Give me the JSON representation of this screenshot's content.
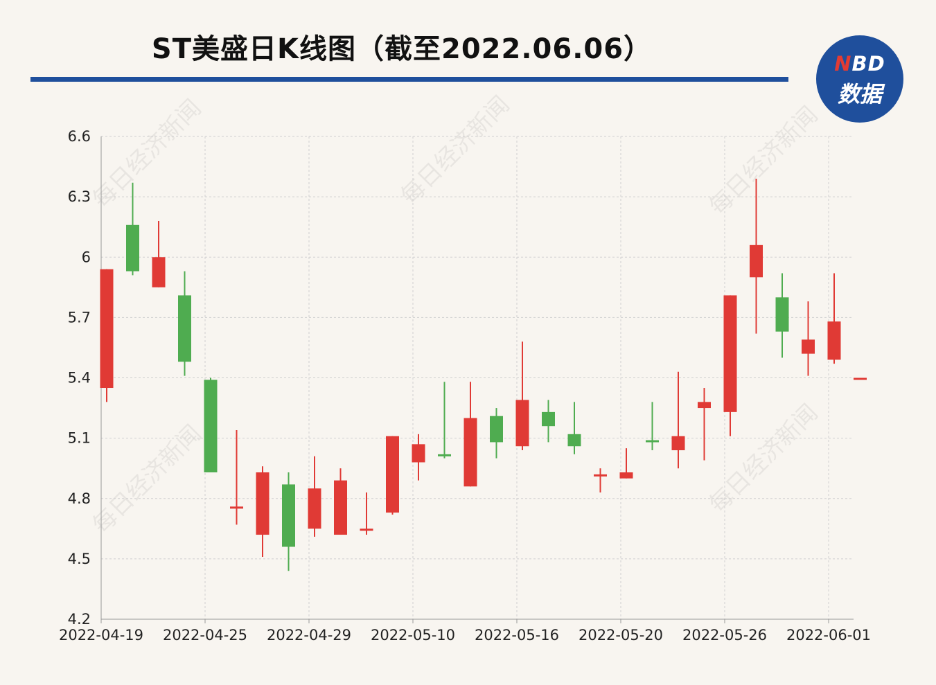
{
  "title": "ST美盛日K线图（截至2022.06.06）",
  "logo": {
    "line1_n": "N",
    "line1_rest": "BD",
    "line2": "数据"
  },
  "watermark": "每日经济新闻",
  "colors": {
    "up": "#e03a35",
    "down": "#4fac50",
    "title_rule": "#1f4f9c",
    "grid": "#cfcfcf",
    "axis": "#999999"
  },
  "chart_data": {
    "type": "candlestick",
    "title": "ST美盛日K线图（截至2022.06.06）",
    "xlabel": "",
    "ylabel": "",
    "ylim": [
      4.2,
      6.6
    ],
    "y_ticks": [
      "4.2",
      "4.5",
      "4.8",
      "5.1",
      "5.4",
      "5.7",
      "6",
      "6.3",
      "6.6"
    ],
    "x_ticks": [
      {
        "label": "2022-04-19",
        "index": 0
      },
      {
        "label": "2022-04-25",
        "index": 4
      },
      {
        "label": "2022-04-29",
        "index": 8
      },
      {
        "label": "2022-05-10",
        "index": 12
      },
      {
        "label": "2022-05-16",
        "index": 16
      },
      {
        "label": "2022-05-20",
        "index": 20
      },
      {
        "label": "2022-05-26",
        "index": 24
      },
      {
        "label": "2022-06-01",
        "index": 28
      }
    ],
    "grid": true,
    "candles": [
      {
        "open": 5.35,
        "close": 5.94,
        "high": 5.94,
        "low": 5.28
      },
      {
        "open": 6.16,
        "close": 5.93,
        "high": 6.37,
        "low": 5.91
      },
      {
        "open": 5.85,
        "close": 6.0,
        "high": 6.18,
        "low": 5.85
      },
      {
        "open": 5.81,
        "close": 5.48,
        "high": 5.93,
        "low": 5.41
      },
      {
        "open": 5.39,
        "close": 4.93,
        "high": 5.4,
        "low": 4.93
      },
      {
        "open": 4.75,
        "close": 4.76,
        "high": 5.14,
        "low": 4.67
      },
      {
        "open": 4.62,
        "close": 4.93,
        "high": 4.96,
        "low": 4.51
      },
      {
        "open": 4.87,
        "close": 4.56,
        "high": 4.93,
        "low": 4.44
      },
      {
        "open": 4.65,
        "close": 4.85,
        "high": 5.01,
        "low": 4.61
      },
      {
        "open": 4.62,
        "close": 4.89,
        "high": 4.95,
        "low": 4.62
      },
      {
        "open": 4.65,
        "close": 4.65,
        "high": 4.83,
        "low": 4.62
      },
      {
        "open": 4.73,
        "close": 5.11,
        "high": 5.11,
        "low": 4.72
      },
      {
        "open": 4.98,
        "close": 5.07,
        "high": 5.12,
        "low": 4.89
      },
      {
        "open": 5.02,
        "close": 5.01,
        "high": 5.38,
        "low": 5.0
      },
      {
        "open": 4.86,
        "close": 5.2,
        "high": 5.38,
        "low": 4.86
      },
      {
        "open": 5.21,
        "close": 5.08,
        "high": 5.25,
        "low": 5.0
      },
      {
        "open": 5.06,
        "close": 5.29,
        "high": 5.58,
        "low": 5.04
      },
      {
        "open": 5.23,
        "close": 5.16,
        "high": 5.29,
        "low": 5.08
      },
      {
        "open": 5.12,
        "close": 5.06,
        "high": 5.28,
        "low": 5.02
      },
      {
        "open": 4.91,
        "close": 4.92,
        "high": 4.95,
        "low": 4.83
      },
      {
        "open": 4.9,
        "close": 4.93,
        "high": 5.05,
        "low": 4.9
      },
      {
        "open": 5.09,
        "close": 5.08,
        "high": 5.28,
        "low": 5.04
      },
      {
        "open": 5.04,
        "close": 5.11,
        "high": 5.43,
        "low": 4.95
      },
      {
        "open": 5.25,
        "close": 5.28,
        "high": 5.35,
        "low": 4.99
      },
      {
        "open": 5.23,
        "close": 5.81,
        "high": 5.81,
        "low": 5.11
      },
      {
        "open": 5.9,
        "close": 6.06,
        "high": 6.39,
        "low": 5.62
      },
      {
        "open": 5.8,
        "close": 5.63,
        "high": 5.92,
        "low": 5.5
      },
      {
        "open": 5.52,
        "close": 5.59,
        "high": 5.78,
        "low": 5.41
      },
      {
        "open": 5.49,
        "close": 5.68,
        "high": 5.92,
        "low": 5.47
      },
      {
        "open": 5.4,
        "close": 5.4,
        "high": 5.4,
        "low": 5.4
      }
    ]
  }
}
